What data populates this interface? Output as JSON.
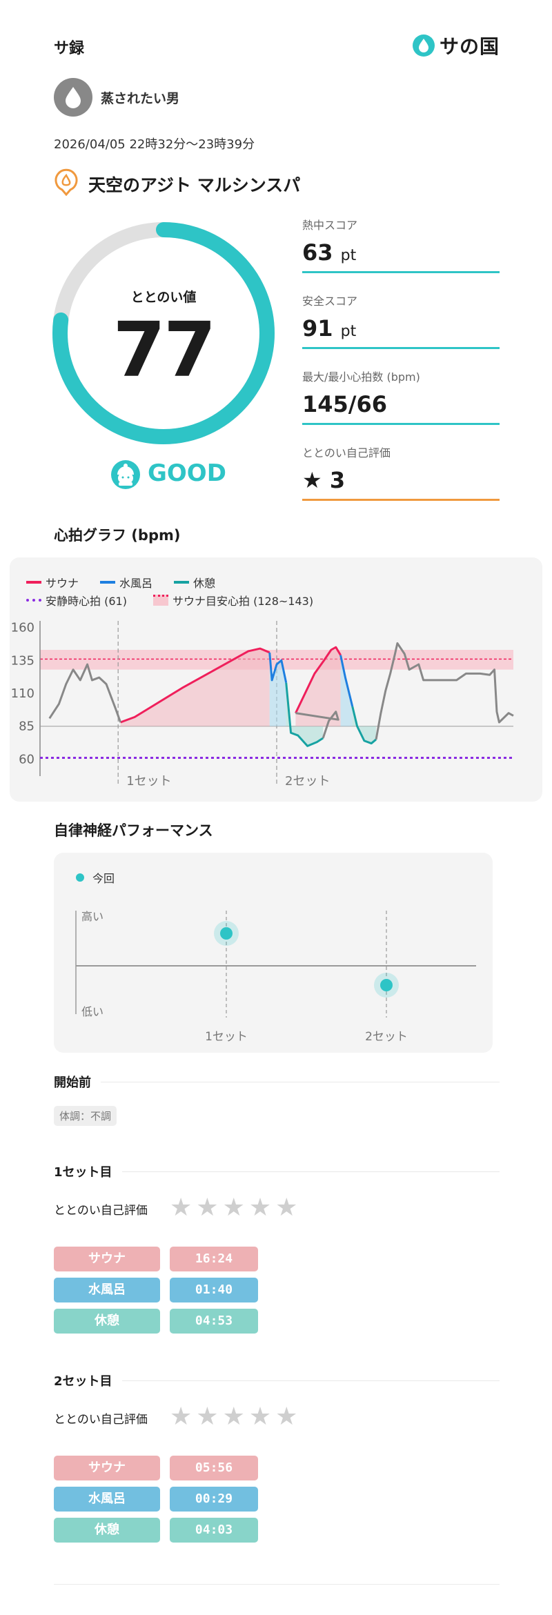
{
  "header": {
    "title": "サ録",
    "brand": "サの国"
  },
  "user": {
    "name": "蒸されたい男"
  },
  "session": {
    "datetime": "2026/04/05 22時32分〜23時39分",
    "facility": "天空のアジト マルシンスパ"
  },
  "totonoi": {
    "label": "ととのい値",
    "value": 77,
    "status": "GOOD"
  },
  "scores": [
    {
      "label": "熱中スコア",
      "value": "63",
      "unit": "pt"
    },
    {
      "label": "安全スコア",
      "value": "91",
      "unit": "pt"
    },
    {
      "label": "最大/最小心拍数 (bpm)",
      "value": "145/66",
      "unit": ""
    },
    {
      "label": "ととのい自己評価",
      "value": "3",
      "unit": ""
    }
  ],
  "heart_section": {
    "title": "心拍グラフ (bpm)"
  },
  "perf_section": {
    "title": "自律神経パフォーマンス"
  },
  "colors": {
    "accent": "#2ec4c6",
    "sauna": "#ef1f5b",
    "water": "#1e7fe0",
    "rest": "#17a2a2",
    "resting": "#8a2be2",
    "orange": "#f0993e"
  },
  "chart_data": [
    {
      "type": "line",
      "title": "心拍グラフ (bpm)",
      "legend": {
        "series": [
          "サウナ",
          "水風呂",
          "休憩"
        ],
        "resting_label": "安静時心拍 (61)",
        "target_label": "サウナ目安心拍 (128~143)"
      },
      "ylim": [
        55,
        165
      ],
      "yticks": [
        160,
        135,
        110,
        85,
        60
      ],
      "resting_hr": 61,
      "target_range": [
        128,
        143
      ],
      "set_labels": [
        "1セット",
        "2セット"
      ],
      "series": [
        {
          "name": "サウナ",
          "segments": [
            [
              [
                0.17,
                88
              ],
              [
                0.2,
                92
              ],
              [
                0.25,
                103
              ],
              [
                0.3,
                114
              ],
              [
                0.34,
                122
              ],
              [
                0.38,
                130
              ],
              [
                0.42,
                138
              ],
              [
                0.44,
                142
              ],
              [
                0.465,
                144
              ],
              [
                0.485,
                141
              ]
            ],
            [
              [
                0.54,
                95
              ],
              [
                0.56,
                110
              ],
              [
                0.58,
                125
              ],
              [
                0.6,
                135
              ],
              [
                0.615,
                143
              ],
              [
                0.625,
                145
              ],
              [
                0.635,
                139
              ]
            ]
          ]
        },
        {
          "name": "水風呂",
          "segments": [
            [
              [
                0.485,
                141
              ],
              [
                0.49,
                120
              ],
              [
                0.5,
                132
              ],
              [
                0.51,
                135
              ],
              [
                0.52,
                118
              ]
            ],
            [
              [
                0.635,
                139
              ],
              [
                0.645,
                122
              ],
              [
                0.66,
                100
              ]
            ]
          ]
        },
        {
          "name": "休憩",
          "segments": [
            [
              [
                0.52,
                118
              ],
              [
                0.53,
                80
              ],
              [
                0.545,
                78
              ],
              [
                0.565,
                70
              ],
              [
                0.585,
                73
              ],
              [
                0.598,
                76
              ]
            ],
            [
              [
                0.66,
                100
              ],
              [
                0.67,
                85
              ],
              [
                0.685,
                74
              ],
              [
                0.7,
                72
              ],
              [
                0.71,
                75
              ]
            ]
          ]
        },
        {
          "name": "other",
          "segments": [
            [
              [
                0.02,
                91
              ],
              [
                0.04,
                102
              ],
              [
                0.055,
                117
              ],
              [
                0.07,
                128
              ],
              [
                0.085,
                120
              ],
              [
                0.1,
                132
              ],
              [
                0.11,
                120
              ],
              [
                0.125,
                122
              ],
              [
                0.14,
                117
              ],
              [
                0.16,
                98
              ],
              [
                0.17,
                88
              ]
            ],
            [
              [
                0.598,
                76
              ],
              [
                0.61,
                89
              ],
              [
                0.625,
                96
              ],
              [
                0.63,
                90
              ],
              [
                0.54,
                95
              ]
            ],
            [
              [
                0.71,
                75
              ],
              [
                0.72,
                95
              ],
              [
                0.73,
                112
              ],
              [
                0.74,
                125
              ],
              [
                0.75,
                140
              ],
              [
                0.755,
                148
              ],
              [
                0.77,
                140
              ],
              [
                0.78,
                128
              ],
              [
                0.8,
                132
              ],
              [
                0.81,
                120
              ],
              [
                0.83,
                120
              ],
              [
                0.86,
                120
              ],
              [
                0.88,
                120
              ],
              [
                0.9,
                125
              ],
              [
                0.93,
                125
              ],
              [
                0.95,
                124
              ],
              [
                0.96,
                128
              ],
              [
                0.965,
                96
              ],
              [
                0.97,
                88
              ],
              [
                0.99,
                95
              ],
              [
                1.0,
                93
              ]
            ]
          ]
        }
      ]
    },
    {
      "type": "scatter",
      "title": "自律神経パフォーマンス",
      "series": [
        {
          "name": "今回",
          "x": [
            "1セット",
            "2セット"
          ],
          "y": [
            0.78,
            0.28
          ]
        }
      ],
      "yaxis_labels": [
        "高い",
        "低い"
      ]
    }
  ],
  "prestart": {
    "title": "開始前",
    "condition": "体調：不調"
  },
  "sets": [
    {
      "title": "1セット目",
      "rating_label": "ととのい自己評価",
      "rows": [
        {
          "label": "サウナ",
          "time": "16:24"
        },
        {
          "label": "水風呂",
          "time": "01:40"
        },
        {
          "label": "休憩",
          "time": "04:53"
        }
      ]
    },
    {
      "title": "2セット目",
      "rating_label": "ととのい自己評価",
      "rows": [
        {
          "label": "サウナ",
          "time": "05:56"
        },
        {
          "label": "水風呂",
          "time": "00:29"
        },
        {
          "label": "休憩",
          "time": "04:03"
        }
      ]
    }
  ]
}
